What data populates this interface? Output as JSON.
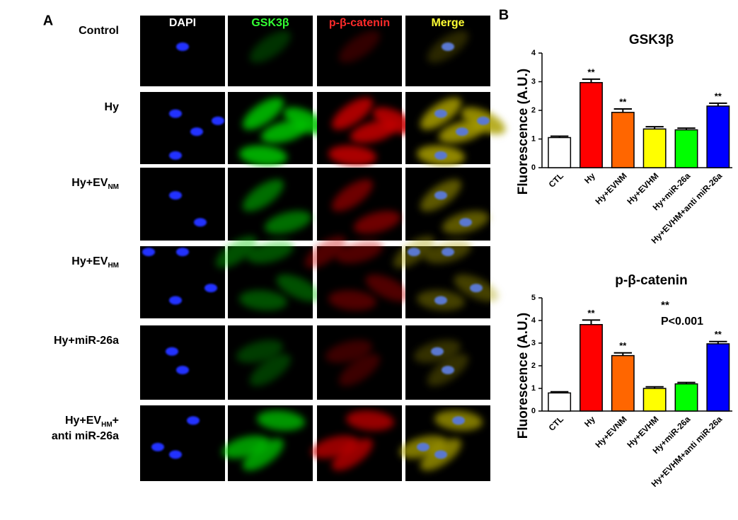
{
  "panel_a": {
    "label": "A",
    "columns": [
      "DAPI",
      "GSK3β",
      "p-β-catenin",
      "Merge"
    ],
    "rows": [
      {
        "text": "Control"
      },
      {
        "text": "Hy"
      },
      {
        "text": "Hy+EV",
        "sub": "NM"
      },
      {
        "text": "Hy+EV",
        "sub": "HM"
      },
      {
        "text": "Hy+miR-26a"
      },
      {
        "text": "Hy+EV",
        "sub": "HM",
        "after": "+",
        "line2": "anti miR-26a"
      }
    ]
  },
  "panel_b_label": "B",
  "chart_data": [
    {
      "type": "bar",
      "title": "GSK3β",
      "y_label": "Fluorescence (A.U.)",
      "categories": [
        "CTL",
        "Hy",
        "Hy+EVNM",
        "Hy+EVHM",
        "Hy+miR-26a",
        "Hy+EVHM+anti miR-26a"
      ],
      "values": [
        1.05,
        2.97,
        1.93,
        1.35,
        1.32,
        2.15
      ],
      "errors": [
        0.05,
        0.12,
        0.12,
        0.08,
        0.06,
        0.1
      ],
      "significance": [
        null,
        "**",
        "**",
        null,
        null,
        "**"
      ],
      "colors": [
        "#ffffff",
        "#ff0000",
        "#ff6600",
        "#ffff00",
        "#00ff00",
        "#0000ff"
      ],
      "ylim": [
        0,
        4
      ],
      "yticks": [
        0,
        1,
        2,
        3,
        4
      ]
    },
    {
      "type": "bar",
      "title": "p-β-catenin",
      "y_label": "Fluorescence (A.U.)",
      "categories": [
        "CTL",
        "Hy",
        "Hy+EVNM",
        "Hy+EVHM",
        "Hy+miR-26a",
        "Hy+EVHM+anti miR-26a"
      ],
      "values": [
        0.8,
        3.82,
        2.45,
        1.0,
        1.2,
        2.97
      ],
      "errors": [
        0.05,
        0.2,
        0.12,
        0.07,
        0.06,
        0.1
      ],
      "significance": [
        null,
        "**",
        "**",
        null,
        null,
        "**"
      ],
      "colors": [
        "#ffffff",
        "#ff0000",
        "#ff6600",
        "#ffff00",
        "#00ff00",
        "#0000ff"
      ],
      "ylim": [
        0,
        5
      ],
      "yticks": [
        0,
        1,
        2,
        3,
        4,
        5
      ],
      "note": {
        "symbol": "**",
        "text": "P<0.001"
      }
    }
  ]
}
